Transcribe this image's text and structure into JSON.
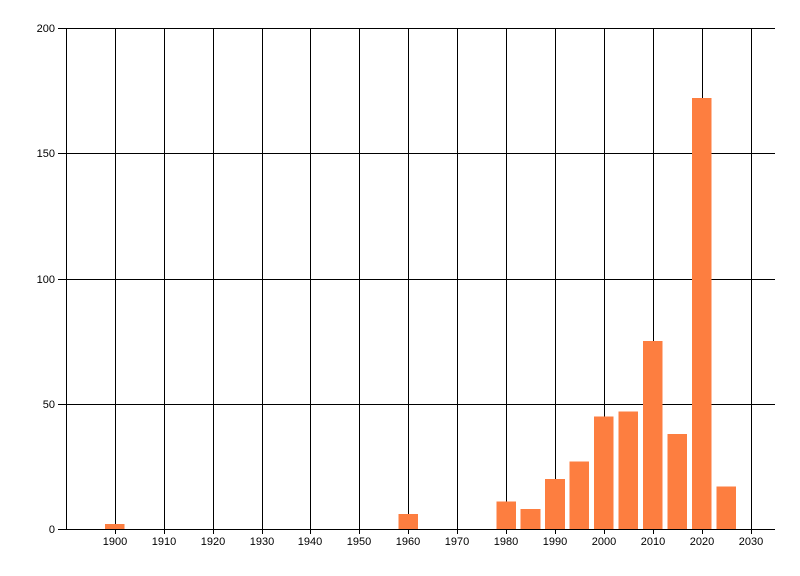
{
  "page": {
    "background_color": "#ffffff"
  },
  "chart_data": {
    "type": "bar",
    "title": "",
    "xlabel": "",
    "ylabel": "",
    "x": [
      1900,
      1960,
      1980,
      1985,
      1990,
      1995,
      2000,
      2005,
      2010,
      2015,
      2020,
      2025
    ],
    "values": [
      2,
      6,
      11,
      8,
      20,
      27,
      45,
      47,
      75,
      38,
      172,
      17
    ],
    "xlim": [
      1890,
      2035
    ],
    "ylim": [
      0,
      200
    ],
    "x_ticks": [
      1900,
      1910,
      1920,
      1930,
      1940,
      1950,
      1960,
      1970,
      1980,
      1990,
      2000,
      2010,
      2020,
      2030
    ],
    "y_ticks": [
      0,
      50,
      100,
      150,
      200
    ],
    "grid": true,
    "legend": null,
    "bar_width_years": 4,
    "bar_color": "#fd7e40",
    "grid_color": "#000000",
    "axis_color": "#000000",
    "text_color": "#000000"
  }
}
